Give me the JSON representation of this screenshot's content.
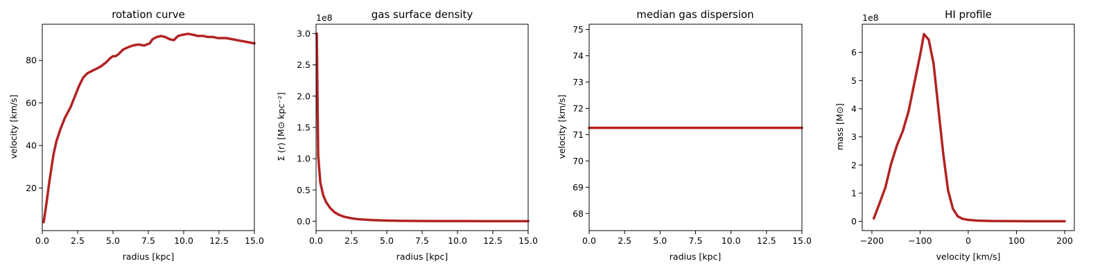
{
  "chart_data": [
    {
      "type": "line",
      "title": "rotation curve",
      "xlabel": "radius [kpc]",
      "ylabel": "velocity [km/s]",
      "xlim": [
        0,
        15
      ],
      "ylim": [
        0,
        97
      ],
      "xticks": [
        0,
        2.5,
        5,
        7.5,
        10,
        12.5,
        15
      ],
      "xtick_labels": [
        "0.0",
        "2.5",
        "5.0",
        "7.5",
        "10.0",
        "12.5",
        "15.0"
      ],
      "yticks": [
        20,
        40,
        60,
        80
      ],
      "ytick_labels": [
        "20",
        "40",
        "60",
        "80"
      ],
      "offset_text": "",
      "color": "#b22222",
      "x": [
        0.1,
        0.3,
        0.5,
        0.8,
        1.0,
        1.3,
        1.6,
        2.0,
        2.3,
        2.6,
        2.9,
        3.2,
        3.5,
        3.8,
        4.1,
        4.5,
        4.8,
        5.0,
        5.2,
        5.4,
        5.7,
        6.0,
        6.4,
        6.8,
        7.2,
        7.6,
        7.8,
        8.1,
        8.4,
        8.7,
        9.0,
        9.3,
        9.6,
        9.9,
        10.3,
        10.7,
        11.0,
        11.4,
        11.7,
        12.1,
        12.4,
        12.7,
        13.0,
        13.4,
        13.8,
        14.2,
        14.6,
        15.0
      ],
      "y": [
        4,
        13,
        23,
        36,
        42,
        48,
        53,
        58,
        63,
        68,
        72,
        74,
        75,
        76,
        77,
        79,
        81,
        82,
        82,
        83,
        85,
        86,
        87,
        87.5,
        87,
        88,
        90,
        91,
        91.5,
        91,
        90,
        89.5,
        91.5,
        92,
        92.5,
        92,
        91.5,
        91.5,
        91,
        91,
        90.5,
        90.5,
        90.5,
        90,
        89.5,
        89,
        88.5,
        88
      ]
    },
    {
      "type": "line",
      "title": "gas surface density",
      "xlabel": "radius [kpc]",
      "ylabel": "Σ (r) [M⊙ kpc⁻²]",
      "xlim": [
        0,
        15
      ],
      "ylim": [
        -15000000,
        315000000
      ],
      "xticks": [
        0,
        2.5,
        5,
        7.5,
        10,
        12.5,
        15
      ],
      "xtick_labels": [
        "0.0",
        "2.5",
        "5.0",
        "7.5",
        "10.0",
        "12.5",
        "15.0"
      ],
      "yticks": [
        0,
        50000000,
        100000000,
        150000000,
        200000000,
        250000000,
        300000000
      ],
      "ytick_labels": [
        "0.0",
        "0.5",
        "1.0",
        "1.5",
        "2.0",
        "2.5",
        "3.0"
      ],
      "offset_text": "1e8",
      "color": "#b22222",
      "x": [
        0.05,
        0.15,
        0.3,
        0.5,
        0.7,
        1.0,
        1.3,
        1.6,
        2.0,
        2.5,
        3.0,
        4.0,
        5.0,
        6.0,
        7.5,
        9.0,
        10.5,
        12.0,
        13.5,
        15.0
      ],
      "y": [
        300000000,
        105000000,
        62000000,
        42000000,
        31000000,
        21000000,
        14500000,
        10500000,
        7000000,
        4700000,
        3200000,
        1800000,
        1100000,
        700000,
        400000,
        250000,
        160000,
        100000,
        60000,
        40000
      ]
    },
    {
      "type": "line",
      "title": "median gas dispersion",
      "xlabel": "radius [kpc]",
      "ylabel": "velocity [km/s]",
      "xlim": [
        0,
        15
      ],
      "ylim": [
        67.35,
        75.2
      ],
      "xticks": [
        0,
        2.5,
        5,
        7.5,
        10,
        12.5,
        15
      ],
      "xtick_labels": [
        "0.0",
        "2.5",
        "5.0",
        "7.5",
        "10.0",
        "12.5",
        "15.0"
      ],
      "yticks": [
        68,
        69,
        70,
        71,
        72,
        73,
        74,
        75
      ],
      "ytick_labels": [
        "68",
        "69",
        "70",
        "71",
        "72",
        "73",
        "74",
        "75"
      ],
      "offset_text": "",
      "color": "#b22222",
      "x": [
        0,
        15
      ],
      "y": [
        71.26,
        71.26
      ]
    },
    {
      "type": "line",
      "title": "HI profile",
      "xlabel": "velocity [km/s]",
      "ylabel": "mass [M⊙]",
      "xlim": [
        -220,
        220
      ],
      "ylim": [
        -33000000,
        700000000
      ],
      "xticks": [
        -200,
        -100,
        0,
        100,
        200
      ],
      "xtick_labels": [
        "−200",
        "−100",
        "0",
        "100",
        "200"
      ],
      "yticks": [
        0,
        100000000,
        200000000,
        300000000,
        400000000,
        500000000,
        600000000
      ],
      "ytick_labels": [
        "0",
        "1",
        "2",
        "3",
        "4",
        "5",
        "6"
      ],
      "offset_text": "1e8",
      "color": "#b22222",
      "x": [
        -196,
        -185,
        -172,
        -160,
        -148,
        -136,
        -124,
        -112,
        -100,
        -92,
        -82,
        -72,
        -62,
        -52,
        -42,
        -32,
        -22,
        -12,
        0,
        20,
        50,
        100,
        150,
        200
      ],
      "y": [
        10000000,
        60000000,
        120000000,
        205000000,
        270000000,
        320000000,
        390000000,
        490000000,
        590000000,
        665000000,
        645000000,
        560000000,
        400000000,
        240000000,
        110000000,
        45000000,
        18000000,
        9000000,
        5000000,
        2500000,
        1000000,
        500000,
        300000,
        200000
      ]
    }
  ]
}
